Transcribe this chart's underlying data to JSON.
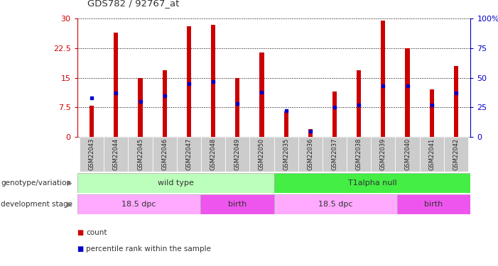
{
  "title": "GDS782 / 92767_at",
  "categories": [
    "GSM22043",
    "GSM22044",
    "GSM22045",
    "GSM22046",
    "GSM22047",
    "GSM22048",
    "GSM22049",
    "GSM22050",
    "GSM22035",
    "GSM22036",
    "GSM22037",
    "GSM22038",
    "GSM22039",
    "GSM22040",
    "GSM22041",
    "GSM22042"
  ],
  "count_values": [
    8.0,
    26.5,
    15.0,
    17.0,
    28.0,
    28.5,
    15.0,
    21.5,
    6.5,
    2.0,
    11.5,
    17.0,
    29.5,
    22.5,
    12.0,
    18.0
  ],
  "percentile_values": [
    33,
    37,
    30,
    35,
    45,
    47,
    28,
    38,
    22,
    5,
    25,
    27,
    43,
    43,
    27,
    37
  ],
  "ylim_left": [
    0,
    30
  ],
  "ylim_right": [
    0,
    100
  ],
  "yticks_left": [
    0,
    7.5,
    15,
    22.5,
    30
  ],
  "ytick_labels_left": [
    "0",
    "7.5",
    "15",
    "22.5",
    "30"
  ],
  "yticks_right": [
    0,
    25,
    50,
    75,
    100
  ],
  "ytick_labels_right": [
    "0",
    "25",
    "50",
    "75",
    "100%"
  ],
  "bar_color": "#cc0000",
  "percentile_color": "#0000cc",
  "bar_width": 0.18,
  "genotype_groups": [
    {
      "label": "wild type",
      "start": 0,
      "end": 8,
      "color": "#bbffbb"
    },
    {
      "label": "T1alpha null",
      "start": 8,
      "end": 16,
      "color": "#44ee44"
    }
  ],
  "stage_groups": [
    {
      "label": "18.5 dpc",
      "start": 0,
      "end": 5,
      "color": "#ffaaff"
    },
    {
      "label": "birth",
      "start": 5,
      "end": 8,
      "color": "#ee55ee"
    },
    {
      "label": "18.5 dpc",
      "start": 8,
      "end": 13,
      "color": "#ffaaff"
    },
    {
      "label": "birth",
      "start": 13,
      "end": 16,
      "color": "#ee55ee"
    }
  ],
  "legend_items": [
    {
      "label": "count",
      "color": "#cc0000"
    },
    {
      "label": "percentile rank within the sample",
      "color": "#0000cc"
    }
  ],
  "left_axis_color": "#cc0000",
  "right_axis_color": "#0000cc",
  "grid_color": "#000000",
  "background_color": "#ffffff",
  "plot_bg_color": "#ffffff",
  "genotype_label": "genotype/variation",
  "stage_label": "development stage",
  "xtick_bg_color": "#cccccc"
}
